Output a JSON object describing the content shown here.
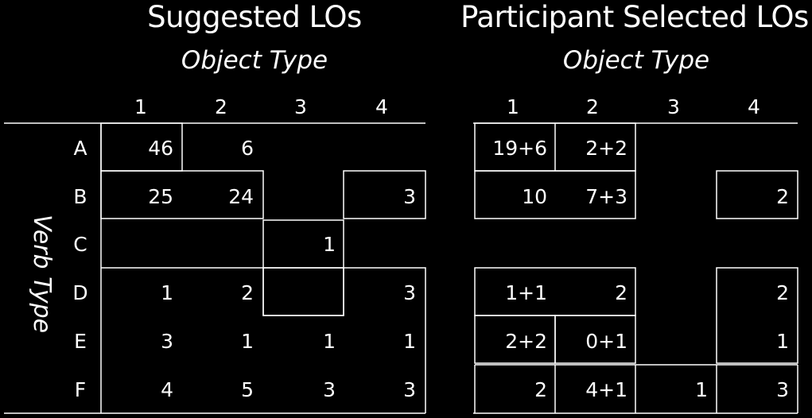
{
  "left_panel": {
    "title": "Suggested LOs",
    "subtitle": "Object Type",
    "column_headers": [
      "1",
      "2",
      "3",
      "4"
    ],
    "rows": [
      {
        "label": "A",
        "cells": [
          "46",
          "6",
          "",
          ""
        ]
      },
      {
        "label": "B",
        "cells": [
          "25",
          "24",
          "",
          "3"
        ]
      },
      {
        "label": "C",
        "cells": [
          "",
          "",
          "1",
          ""
        ]
      },
      {
        "label": "D",
        "cells": [
          "1",
          "2",
          "",
          "3"
        ]
      },
      {
        "label": "E",
        "cells": [
          "3",
          "1",
          "1",
          "1"
        ]
      },
      {
        "label": "F",
        "cells": [
          "4",
          "5",
          "3",
          "3"
        ]
      }
    ]
  },
  "right_panel": {
    "title": "Participant Selected LOs",
    "subtitle": "Object Type",
    "column_headers": [
      "1",
      "2",
      "3",
      "4"
    ],
    "rows": [
      {
        "cells": [
          "19+6",
          "2+2",
          "",
          ""
        ]
      },
      {
        "cells": [
          "10",
          "7+3",
          "",
          "2"
        ]
      },
      {
        "cells": [
          "",
          "",
          "",
          ""
        ]
      },
      {
        "cells": [
          "1+1",
          "2",
          "",
          "2"
        ]
      },
      {
        "cells": [
          "2+2",
          "0+1",
          "",
          "1"
        ]
      },
      {
        "cells": [
          "2",
          "4+1",
          "1",
          "3"
        ]
      }
    ]
  },
  "row_axis_label": "Verb Type",
  "line_color": "#ffffff",
  "background_color": "#000000"
}
